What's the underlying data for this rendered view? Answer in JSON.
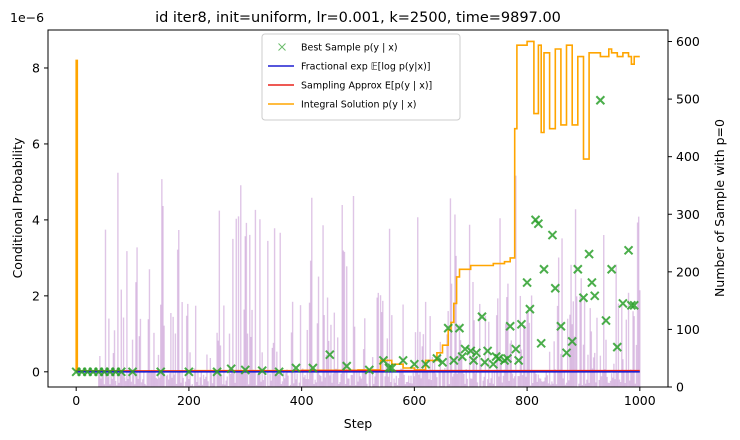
{
  "chart_data": {
    "type": "line",
    "title": "id iter8, init=uniform, lr=0.001, k=2500, time=9897.00",
    "xlabel": "Step",
    "ylabel": "Conditional Probability",
    "ylabel_right": "Number of Sample with p=0",
    "y_offset_label": "1e−6",
    "xlim": [
      -50,
      1050
    ],
    "ylim": [
      -0.4,
      9.0
    ],
    "ylim_right": [
      0,
      620
    ],
    "x_ticks": [
      0,
      200,
      400,
      600,
      800,
      1000
    ],
    "y_ticks": [
      0,
      2,
      4,
      6,
      8
    ],
    "y_ticks_right": [
      0,
      100,
      200,
      300,
      400,
      500,
      600
    ],
    "grid": false,
    "legend_position": "top-center",
    "colors": {
      "best": "#2ca02c",
      "fractional": "#1f1fd0",
      "sampling": "#e8221b",
      "integral": "#ffa500",
      "histogram": "#a35ab8",
      "right_axis_label": "#800080"
    },
    "legend": [
      {
        "key": "best",
        "label": "Best Sample p(y | x)",
        "marker": "x"
      },
      {
        "key": "fractional",
        "label": "Fractional exp 𝔼[log p(y|x)]",
        "marker": "line"
      },
      {
        "key": "sampling",
        "label": "Sampling Approx E[p(y | x)]",
        "marker": "line"
      },
      {
        "key": "integral",
        "label": "Integral Solution p(y | x)",
        "marker": "line"
      }
    ],
    "series": [
      {
        "key": "integral",
        "name": "Integral Solution p(y | x)",
        "x": [
          0,
          0,
          2,
          100,
          200,
          300,
          400,
          500,
          540,
          560,
          580,
          600,
          620,
          640,
          650,
          660,
          665,
          670,
          675,
          680,
          690,
          700,
          710,
          720,
          730,
          740,
          750,
          760,
          770,
          778,
          782,
          790,
          800,
          805,
          812,
          820,
          825,
          830,
          840,
          850,
          860,
          870,
          880,
          890,
          900,
          910,
          915,
          920,
          925,
          930,
          940,
          945,
          950,
          960,
          970,
          980,
          985,
          990,
          1000
        ],
        "y": [
          0,
          8.2,
          0.02,
          0.02,
          0.03,
          0.03,
          0.04,
          0.05,
          0.3,
          0.2,
          0.1,
          0.05,
          0.3,
          0.5,
          0.7,
          1.1,
          1.3,
          1.8,
          2.5,
          2.7,
          2.7,
          2.8,
          2.8,
          2.8,
          2.8,
          2.85,
          2.85,
          2.9,
          3.0,
          6.4,
          8.6,
          8.6,
          8.7,
          8.7,
          6.8,
          8.6,
          6.3,
          8.4,
          6.4,
          8.5,
          6.5,
          8.6,
          6.5,
          8.3,
          5.6,
          8.4,
          8.4,
          8.4,
          8.4,
          8.3,
          8.3,
          8.5,
          8.4,
          8.3,
          8.4,
          8.3,
          8.1,
          8.3,
          8.3
        ]
      },
      {
        "key": "sampling",
        "name": "Sampling Approx E[p(y | x)]",
        "x": [
          0,
          200,
          400,
          600,
          800,
          1000
        ],
        "y": [
          0.02,
          0.02,
          0.03,
          0.03,
          0.03,
          0.03
        ]
      },
      {
        "key": "fractional",
        "name": "Fractional exp 𝔼[log p(y|x)]",
        "x": [
          0,
          200,
          400,
          600,
          800,
          1000
        ],
        "y": [
          0.0,
          0.0,
          0.0,
          0.0,
          0.0,
          0.0
        ]
      }
    ],
    "best_sample": {
      "x": [
        0,
        10,
        20,
        30,
        40,
        50,
        60,
        70,
        80,
        100,
        150,
        200,
        250,
        275,
        300,
        330,
        360,
        390,
        420,
        450,
        480,
        520,
        545,
        555,
        560,
        580,
        600,
        620,
        640,
        650,
        660,
        670,
        680,
        685,
        690,
        700,
        705,
        710,
        720,
        725,
        730,
        740,
        745,
        750,
        760,
        765,
        770,
        780,
        785,
        790,
        800,
        805,
        815,
        820,
        825,
        830,
        845,
        850,
        860,
        870,
        880,
        890,
        900,
        910,
        915,
        920,
        930,
        940,
        950,
        960,
        970,
        980,
        985,
        990
      ],
      "y": [
        0.0,
        0.0,
        0.0,
        0.0,
        0.0,
        0.0,
        0.0,
        0.0,
        0.0,
        0.0,
        0.0,
        0.0,
        0.0,
        0.08,
        0.05,
        0.03,
        0.0,
        0.1,
        0.1,
        0.45,
        0.15,
        0.05,
        0.3,
        0.1,
        0.1,
        0.3,
        0.2,
        0.2,
        0.35,
        0.25,
        1.15,
        0.3,
        1.15,
        0.4,
        0.6,
        0.55,
        0.3,
        0.5,
        1.45,
        0.25,
        0.55,
        0.2,
        0.4,
        0.35,
        0.3,
        0.35,
        1.2,
        0.6,
        0.3,
        1.25,
        2.35,
        1.65,
        4.0,
        3.9,
        0.75,
        2.7,
        3.6,
        2.2,
        1.2,
        0.5,
        0.8,
        2.7,
        1.95,
        3.1,
        2.35,
        2.0,
        7.15,
        1.35,
        2.7,
        0.65,
        1.8,
        3.2,
        1.75,
        1.75
      ]
    },
    "histogram_right_axis": {
      "x_start": 40,
      "x_end": 1000,
      "count_range": [
        0,
        500
      ]
    }
  }
}
